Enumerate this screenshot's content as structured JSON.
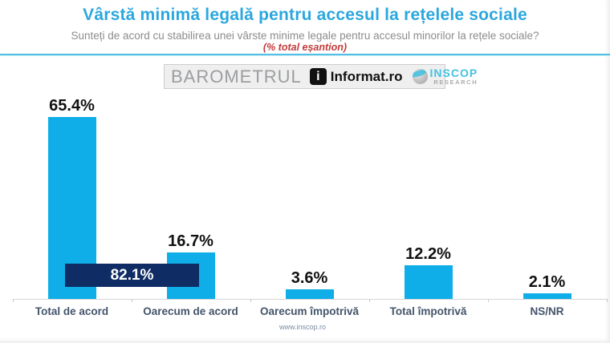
{
  "header": {
    "title": "Vârstă minimă legală pentru accesul la rețelele sociale",
    "subtitle": "Sunteți de acord cu stabilirea unei vârste minime legale pentru accesul minorilor la rețele sociale?",
    "sample_note": "(% total eșantion)"
  },
  "logos": {
    "barometrul": "BAROMETRUL",
    "informat_icon": "i",
    "informat": "Informat.ro",
    "inscop_line1": "INSCOP",
    "inscop_line2": "RESEARCH"
  },
  "chart_data": {
    "type": "bar",
    "title": "Vârstă minimă legală pentru accesul la rețelele sociale",
    "categories": [
      "Total de acord",
      "Oarecum de acord",
      "Oarecum împotrivă",
      "Total împotrivă",
      "NS/NR"
    ],
    "values": [
      65.4,
      16.7,
      3.6,
      12.2,
      2.1
    ],
    "value_labels": [
      "65.4%",
      "16.7%",
      "3.6%",
      "12.2%",
      "2.1%"
    ],
    "annotation": {
      "label": "82.1%",
      "covers_categories": [
        "Total de acord",
        "Oarecum de acord"
      ]
    },
    "bar_color": "#0FAEE8",
    "annotation_color": "#0F2D64",
    "xlabel": "",
    "ylabel": "",
    "ylim": [
      0,
      70
    ],
    "grid": false,
    "legend": "none"
  },
  "footer": {
    "url": "www.inscop.ro"
  }
}
